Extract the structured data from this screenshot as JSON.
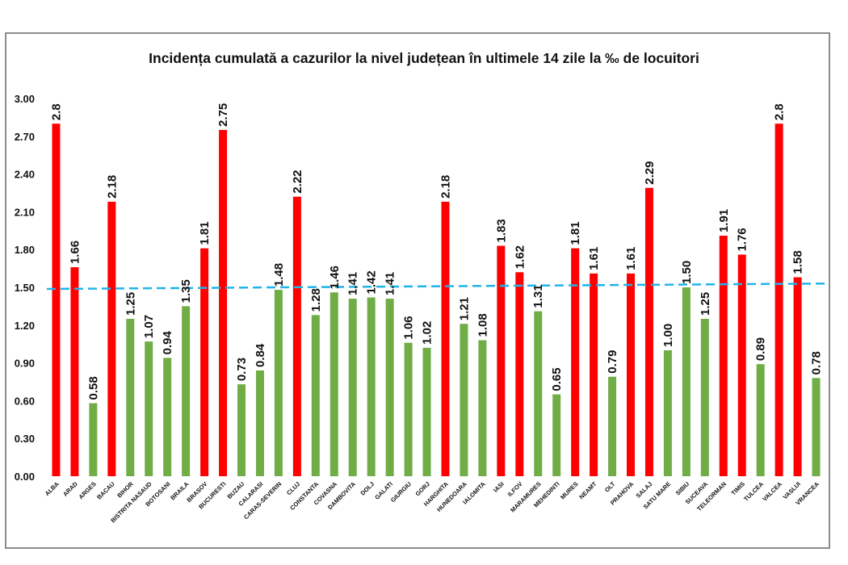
{
  "chart_data": {
    "type": "bar",
    "title": "Incidența cumulată a cazurilor la nivel județean în ultimele 14 zile la ‰ de locuitori",
    "ylim": [
      0,
      3.0
    ],
    "yticks": [
      "0.00",
      "0.30",
      "0.60",
      "0.90",
      "1.20",
      "1.50",
      "1.80",
      "2.10",
      "2.40",
      "2.70",
      "3.00"
    ],
    "threshold": {
      "value": 1.5,
      "value_end": 1.53,
      "color": "#1fb4e8",
      "style": "dashed"
    },
    "colors": {
      "high": "#ff0000",
      "low": "#70ad47"
    },
    "grid": false,
    "bars": [
      {
        "category": "ALBA",
        "value": 2.8,
        "label": "2.8",
        "status": "high"
      },
      {
        "category": "ARAD",
        "value": 1.66,
        "label": "1.66",
        "status": "high"
      },
      {
        "category": "ARGES",
        "value": 0.58,
        "label": "0.58",
        "status": "low"
      },
      {
        "category": "BACAU",
        "value": 2.18,
        "label": "2.18",
        "status": "high"
      },
      {
        "category": "BIHOR",
        "value": 1.25,
        "label": "1.25",
        "status": "low"
      },
      {
        "category": "BISTRITA NASAUD",
        "value": 1.07,
        "label": "1.07",
        "status": "low"
      },
      {
        "category": "BOTOSANI",
        "value": 0.94,
        "label": "0.94",
        "status": "low"
      },
      {
        "category": "BRAILA",
        "value": 1.35,
        "label": "1.35",
        "status": "low"
      },
      {
        "category": "BRASOV",
        "value": 1.81,
        "label": "1.81",
        "status": "high"
      },
      {
        "category": "BUCURESTI",
        "value": 2.75,
        "label": "2.75",
        "status": "high"
      },
      {
        "category": "BUZAU",
        "value": 0.73,
        "label": "0.73",
        "status": "low"
      },
      {
        "category": "CALARASI",
        "value": 0.84,
        "label": "0.84",
        "status": "low"
      },
      {
        "category": "CARAS-SEVERIN",
        "value": 1.48,
        "label": "1.48",
        "status": "low"
      },
      {
        "category": "CLUJ",
        "value": 2.22,
        "label": "2.22",
        "status": "high"
      },
      {
        "category": "CONSTANTA",
        "value": 1.28,
        "label": "1.28",
        "status": "low"
      },
      {
        "category": "COVASNA",
        "value": 1.46,
        "label": "1.46",
        "status": "low"
      },
      {
        "category": "DAMBOVITA",
        "value": 1.41,
        "label": "1.41",
        "status": "low"
      },
      {
        "category": "DOLJ",
        "value": 1.42,
        "label": "1.42",
        "status": "low"
      },
      {
        "category": "GALATI",
        "value": 1.41,
        "label": "1.41",
        "status": "low"
      },
      {
        "category": "GIURGIU",
        "value": 1.06,
        "label": "1.06",
        "status": "low"
      },
      {
        "category": "GORJ",
        "value": 1.02,
        "label": "1.02",
        "status": "low"
      },
      {
        "category": "HARGHITA",
        "value": 2.18,
        "label": "2.18",
        "status": "high"
      },
      {
        "category": "HUNEDOARA",
        "value": 1.21,
        "label": "1.21",
        "status": "low"
      },
      {
        "category": "IALOMITA",
        "value": 1.08,
        "label": "1.08",
        "status": "low"
      },
      {
        "category": "IASI",
        "value": 1.83,
        "label": "1.83",
        "status": "high"
      },
      {
        "category": "ILFOV",
        "value": 1.62,
        "label": "1.62",
        "status": "high"
      },
      {
        "category": "MARAMURES",
        "value": 1.31,
        "label": "1.31",
        "status": "low"
      },
      {
        "category": "MEHEDINTI",
        "value": 0.65,
        "label": "0.65",
        "status": "low"
      },
      {
        "category": "MURES",
        "value": 1.81,
        "label": "1.81",
        "status": "high"
      },
      {
        "category": "NEAMT",
        "value": 1.61,
        "label": "1.61",
        "status": "high"
      },
      {
        "category": "OLT",
        "value": 0.79,
        "label": "0.79",
        "status": "low"
      },
      {
        "category": "PRAHOVA",
        "value": 1.61,
        "label": "1.61",
        "status": "high"
      },
      {
        "category": "SALAJ",
        "value": 2.29,
        "label": "2.29",
        "status": "high"
      },
      {
        "category": "SATU MARE",
        "value": 1.0,
        "label": "1.00",
        "status": "low"
      },
      {
        "category": "SIBIU",
        "value": 1.5,
        "label": "1.50",
        "status": "low"
      },
      {
        "category": "SUCEAVA",
        "value": 1.25,
        "label": "1.25",
        "status": "low"
      },
      {
        "category": "TELEORMAN",
        "value": 1.91,
        "label": "1.91",
        "status": "high"
      },
      {
        "category": "TIMIS",
        "value": 1.76,
        "label": "1.76",
        "status": "high"
      },
      {
        "category": "TULCEA",
        "value": 0.89,
        "label": "0.89",
        "status": "low"
      },
      {
        "category": "VALCEA",
        "value": 2.8,
        "label": "2.8",
        "status": "high"
      },
      {
        "category": "VASLUI",
        "value": 1.58,
        "label": "1.58",
        "status": "high"
      },
      {
        "category": "VRANCEA",
        "value": 0.78,
        "label": "0.78",
        "status": "low"
      }
    ]
  }
}
